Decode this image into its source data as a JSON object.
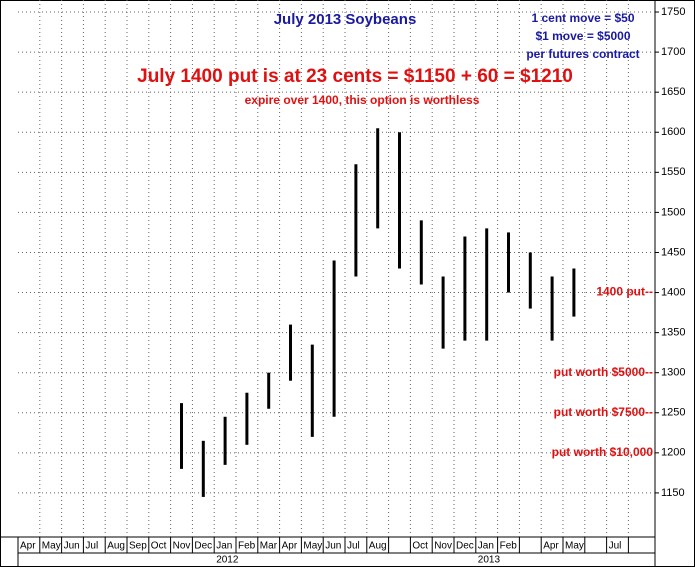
{
  "chart_data": {
    "type": "range",
    "title": "July 2013 Soybeans",
    "notes": [
      "1 cent move = $50",
      "$1 move = $5000",
      "per futures contract"
    ],
    "headline": "July 1400 put is at 23 cents = $1150 + 60 = $1210",
    "subheadline": "expire over 1400, this option is worthless",
    "levels": [
      {
        "text": "1400 put--",
        "value": 1400
      },
      {
        "text": "put worth $5000--",
        "value": 1300
      },
      {
        "text": "put worth $7500--",
        "value": 1250
      },
      {
        "text": "put worth $10,000",
        "value": 1200
      }
    ],
    "categories": [
      "Apr",
      "May",
      "Jun",
      "Jul",
      "Aug",
      "Sep",
      "Oct",
      "Nov",
      "Dec",
      "Jan",
      "Feb",
      "Mar",
      "Apr",
      "May",
      "Jun",
      "Jul",
      "Aug",
      null,
      "Oct",
      "Nov",
      "Dec",
      "Jan",
      "Feb",
      null,
      "Apr",
      "May",
      null,
      "Jul",
      null
    ],
    "years": [
      null,
      null,
      null,
      null,
      null,
      null,
      null,
      null,
      null,
      "2012",
      null,
      null,
      null,
      null,
      null,
      null,
      null,
      null,
      null,
      null,
      null,
      "2013",
      null,
      null,
      null,
      null,
      null,
      null,
      null
    ],
    "highs": [
      null,
      null,
      null,
      null,
      null,
      null,
      null,
      1262,
      1215,
      1245,
      1275,
      1300,
      1360,
      1335,
      1440,
      1560,
      1605,
      1600,
      1490,
      1420,
      1470,
      1480,
      1475,
      1450,
      1420,
      1430,
      null,
      null,
      null
    ],
    "lows": [
      null,
      null,
      null,
      null,
      null,
      null,
      null,
      1180,
      1145,
      1185,
      1210,
      1255,
      1290,
      1220,
      1245,
      1420,
      1480,
      1430,
      1410,
      1330,
      1340,
      1340,
      1400,
      1380,
      1340,
      1370,
      null,
      null,
      null
    ],
    "color": "#000000",
    "ylim": [
      1095,
      1765
    ],
    "yticks": [
      1150,
      1200,
      1250,
      1300,
      1350,
      1400,
      1450,
      1500,
      1550,
      1600,
      1650,
      1700,
      1750
    ],
    "grid": true
  }
}
